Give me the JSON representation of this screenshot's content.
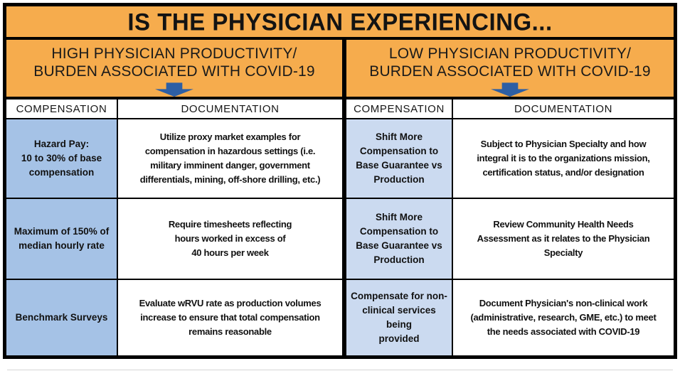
{
  "title": "IS THE PHYSICIAN EXPERIENCING...",
  "branches": {
    "high": {
      "label": "HIGH PHYSICIAN PRODUCTIVITY/\nBURDEN ASSOCIATED WITH COVID-19"
    },
    "low": {
      "label": "LOW PHYSICIAN PRODUCTIVITY/\nBURDEN ASSOCIATED WITH COVID-19"
    }
  },
  "headers": {
    "compensation": "COMPENSATION",
    "documentation": "DOCUMENTATION"
  },
  "high_table": {
    "rows": [
      {
        "compensation": "Hazard Pay:\n10 to 30% of base\ncompensation",
        "documentation": "Utilize proxy market examples for\ncompensation in hazardous settings (i.e.\nmilitary imminent danger, government\ndifferentials, mining, off-shore drilling, etc.)"
      },
      {
        "compensation": "Maximum of 150% of\nmedian hourly rate",
        "documentation": "Require timesheets reflecting\nhours worked in excess of\n40 hours per week"
      },
      {
        "compensation": "Benchmark Surveys",
        "documentation": "Evaluate wRVU rate as production volumes\nincrease to ensure that total compensation\nremains reasonable"
      }
    ]
  },
  "low_table": {
    "rows": [
      {
        "compensation": "Shift More\nCompensation to\nBase Guarantee vs\nProduction",
        "documentation": "Subject to Physician Specialty and how\nintegral it is to the organizations mission,\ncertification status, and/or designation"
      },
      {
        "compensation": "Shift More\nCompensation to\nBase Guarantee vs\nProduction",
        "documentation": "Review Community Health Needs\nAssessment as it relates to the Physician\nSpecialty"
      },
      {
        "compensation": "Compensate for non-\nclinical services being\nprovided",
        "documentation": "Document Physician's non-clinical work\n(administrative, research, GME, etc.) to meet\nthe needs associated with COVID-19"
      }
    ]
  },
  "colors": {
    "header_orange": "#F6AC4D",
    "arrow_blue": "#2E5FA4",
    "high_compensation_cell_blue": "#A5C2E6",
    "low_compensation_cell_blue": "#CBDAF0",
    "border_black": "#000000"
  }
}
